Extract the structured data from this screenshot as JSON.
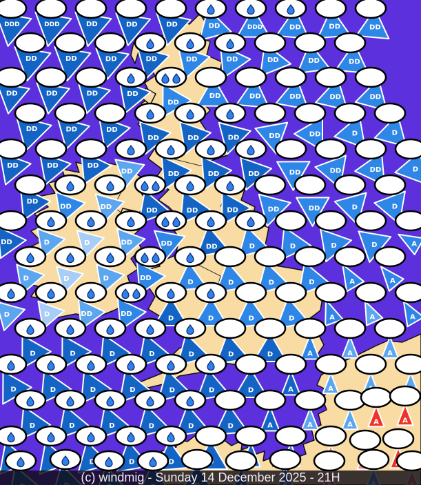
{
  "map": {
    "caption": "(c) windmig - Sunday 14 December 2025 - 21H",
    "colors": {
      "sea": "#5C30DC",
      "land": "#F8DCA4",
      "coast_outline": "#101010",
      "triangle_outline": "#FFFFFF",
      "cloud_fill": "#FFFFFF",
      "cloud_outline": "#000000",
      "drop_fill": "#2F80E8",
      "drop_outline": "#0A2A6E",
      "triangle_palette": [
        "#1464C6",
        "#2E86E6",
        "#5CA6F0",
        "#A8CEF6",
        "#EE3426",
        "#F4857C"
      ]
    },
    "symbol_format": "[x, y, apex_direction_deg(0=N), color_index, label, drop_count, scale]",
    "wind_labels_seen": [
      "D",
      "DD",
      "DDD",
      "A"
    ],
    "symbols": [
      [
        16,
        12,
        190,
        0,
        "DDD",
        0,
        1.1
      ],
      [
        74,
        12,
        190,
        0,
        "DDD",
        0,
        1.1
      ],
      [
        132,
        12,
        190,
        0,
        "DD",
        0,
        1.1
      ],
      [
        190,
        12,
        190,
        0,
        "DD",
        0,
        1.05
      ],
      [
        248,
        12,
        192,
        0,
        "DD",
        0,
        1.05
      ],
      [
        306,
        12,
        225,
        1,
        "DD",
        1,
        1
      ],
      [
        364,
        12,
        240,
        1,
        "DDD",
        1,
        1
      ],
      [
        422,
        12,
        245,
        1,
        "DD",
        1,
        1
      ],
      [
        480,
        12,
        235,
        1,
        "DD",
        0,
        1
      ],
      [
        538,
        12,
        245,
        1,
        "DD",
        0,
        1
      ],
      [
        44,
        62,
        190,
        0,
        "DD",
        0,
        1.1
      ],
      [
        102,
        62,
        190,
        0,
        "DD",
        0,
        1.1
      ],
      [
        160,
        62,
        190,
        0,
        "DD",
        0,
        1
      ],
      [
        218,
        62,
        195,
        0,
        "DD",
        1,
        1
      ],
      [
        276,
        62,
        198,
        1,
        "DD",
        1,
        1
      ],
      [
        334,
        62,
        205,
        1,
        "DD",
        1,
        1
      ],
      [
        392,
        62,
        218,
        1,
        "DD",
        0,
        1
      ],
      [
        450,
        62,
        232,
        1,
        "DD",
        0,
        1
      ],
      [
        508,
        62,
        245,
        1,
        "DD",
        0,
        1
      ],
      [
        16,
        112,
        190,
        0,
        "DD",
        0,
        1
      ],
      [
        74,
        112,
        190,
        0,
        "DD",
        0,
        1
      ],
      [
        132,
        112,
        195,
        0,
        "DD",
        0,
        1
      ],
      [
        190,
        112,
        200,
        0,
        "DD",
        1,
        1
      ],
      [
        248,
        112,
        330,
        1,
        "DD",
        2,
        1
      ],
      [
        306,
        112,
        240,
        1,
        "DD",
        0,
        1
      ],
      [
        364,
        112,
        245,
        1,
        "DD",
        0,
        1
      ],
      [
        422,
        112,
        250,
        1,
        "DD",
        0,
        1
      ],
      [
        480,
        112,
        253,
        1,
        "DD",
        0,
        1
      ],
      [
        538,
        112,
        255,
        1,
        "DD",
        0,
        1
      ],
      [
        44,
        164,
        195,
        0,
        "DD",
        0,
        1.1
      ],
      [
        102,
        164,
        195,
        0,
        "DD",
        0,
        1
      ],
      [
        160,
        164,
        200,
        0,
        "DD",
        0,
        1
      ],
      [
        218,
        164,
        320,
        0,
        "DD",
        1,
        1
      ],
      [
        276,
        164,
        320,
        0,
        "DD",
        1,
        1
      ],
      [
        334,
        164,
        315,
        0,
        "DD",
        1,
        1
      ],
      [
        392,
        164,
        290,
        1,
        "DD",
        0,
        1
      ],
      [
        450,
        164,
        270,
        1,
        "DD",
        0,
        1
      ],
      [
        508,
        164,
        260,
        1,
        "D",
        0,
        1
      ],
      [
        566,
        164,
        255,
        1,
        "D",
        0,
        1
      ],
      [
        16,
        216,
        200,
        0,
        "DD",
        0,
        1
      ],
      [
        74,
        216,
        200,
        0,
        "DD",
        0,
        1
      ],
      [
        132,
        216,
        205,
        0,
        "DD",
        0,
        1
      ],
      [
        190,
        216,
        70,
        2,
        "DD",
        1,
        0.9
      ],
      [
        248,
        216,
        325,
        0,
        "DD",
        1,
        1
      ],
      [
        306,
        216,
        325,
        0,
        "DD",
        1,
        1
      ],
      [
        364,
        216,
        320,
        0,
        "DD",
        1,
        1
      ],
      [
        422,
        216,
        300,
        1,
        "DD",
        0,
        1
      ],
      [
        480,
        216,
        280,
        1,
        "DD",
        0,
        1
      ],
      [
        538,
        216,
        265,
        1,
        "DD",
        0,
        1
      ],
      [
        596,
        216,
        260,
        1,
        "D",
        0,
        1
      ],
      [
        44,
        268,
        205,
        0,
        "DD",
        0,
        1
      ],
      [
        102,
        268,
        80,
        1,
        "DD",
        1,
        0.95
      ],
      [
        160,
        268,
        75,
        2,
        "DD",
        1,
        0.9
      ],
      [
        218,
        268,
        340,
        0,
        "DD",
        2,
        1
      ],
      [
        276,
        268,
        335,
        0,
        "DD",
        1,
        1
      ],
      [
        334,
        268,
        330,
        0,
        "DD",
        1,
        1
      ],
      [
        392,
        268,
        315,
        1,
        "DD",
        0,
        1
      ],
      [
        450,
        268,
        300,
        1,
        "DD",
        0,
        1
      ],
      [
        508,
        268,
        285,
        1,
        "D",
        0,
        1
      ],
      [
        566,
        268,
        280,
        1,
        "D",
        0,
        1
      ],
      [
        16,
        320,
        85,
        0,
        "DD",
        0,
        0.95
      ],
      [
        74,
        320,
        80,
        2,
        "D",
        1,
        0.9
      ],
      [
        132,
        320,
        75,
        3,
        "D",
        1,
        0.85
      ],
      [
        190,
        320,
        80,
        2,
        "DD",
        1,
        0.9
      ],
      [
        248,
        320,
        70,
        1,
        "DD",
        2,
        0.95
      ],
      [
        306,
        320,
        350,
        0,
        "DD",
        1,
        1
      ],
      [
        364,
        320,
        345,
        1,
        "D",
        1,
        0.95
      ],
      [
        422,
        320,
        335,
        1,
        "D",
        0,
        1
      ],
      [
        480,
        320,
        320,
        1,
        "D",
        0,
        1
      ],
      [
        538,
        320,
        310,
        1,
        "D",
        0,
        1
      ],
      [
        596,
        320,
        300,
        1,
        "A",
        0,
        0.85
      ],
      [
        44,
        372,
        80,
        2,
        "D",
        1,
        0.9
      ],
      [
        102,
        372,
        75,
        3,
        "D",
        1,
        0.85
      ],
      [
        160,
        372,
        80,
        2,
        "D",
        1,
        0.9
      ],
      [
        218,
        372,
        85,
        1,
        "DD",
        2,
        0.95
      ],
      [
        276,
        372,
        355,
        1,
        "D",
        1,
        0.95
      ],
      [
        334,
        372,
        350,
        1,
        "D",
        0,
        1
      ],
      [
        392,
        372,
        345,
        1,
        "D",
        0,
        1
      ],
      [
        450,
        372,
        340,
        1,
        "D",
        0,
        1
      ],
      [
        508,
        372,
        330,
        1,
        "A",
        0,
        0.9
      ],
      [
        566,
        372,
        320,
        1,
        "A",
        0,
        0.85
      ],
      [
        16,
        424,
        75,
        2,
        "D",
        1,
        0.9
      ],
      [
        74,
        424,
        80,
        3,
        "D",
        1,
        0.85
      ],
      [
        132,
        424,
        85,
        2,
        "DD",
        1,
        0.9
      ],
      [
        190,
        424,
        85,
        1,
        "DD",
        2,
        0.95
      ],
      [
        248,
        424,
        0,
        0,
        "D",
        1,
        1
      ],
      [
        306,
        424,
        0,
        1,
        "D",
        1,
        1
      ],
      [
        364,
        424,
        355,
        1,
        "D",
        0,
        1
      ],
      [
        422,
        424,
        350,
        1,
        "D",
        0,
        1
      ],
      [
        480,
        424,
        340,
        1,
        "A",
        0,
        0.85
      ],
      [
        538,
        424,
        335,
        2,
        "A",
        0,
        0.8
      ],
      [
        596,
        424,
        330,
        1,
        "A",
        0,
        0.85
      ],
      [
        44,
        476,
        330,
        0,
        "D",
        1,
        1
      ],
      [
        102,
        476,
        330,
        0,
        "D",
        1,
        1
      ],
      [
        160,
        476,
        335,
        0,
        "D",
        1,
        1
      ],
      [
        218,
        476,
        340,
        0,
        "D",
        1,
        1
      ],
      [
        276,
        476,
        345,
        0,
        "D",
        1,
        1
      ],
      [
        334,
        476,
        350,
        0,
        "D",
        0,
        1
      ],
      [
        392,
        476,
        0,
        0,
        "D",
        0,
        1
      ],
      [
        450,
        476,
        0,
        1,
        "A",
        0,
        0.85
      ],
      [
        508,
        476,
        0,
        2,
        "A",
        0,
        0.75
      ],
      [
        566,
        476,
        0,
        2,
        "A",
        0,
        0.75
      ],
      [
        16,
        528,
        330,
        0,
        "D",
        1,
        1
      ],
      [
        74,
        528,
        335,
        0,
        "D",
        1,
        1
      ],
      [
        132,
        528,
        335,
        0,
        "D",
        1,
        1
      ],
      [
        190,
        528,
        340,
        0,
        "D",
        1,
        1
      ],
      [
        248,
        528,
        345,
        0,
        "D",
        1,
        1
      ],
      [
        306,
        528,
        350,
        0,
        "D",
        1,
        1
      ],
      [
        364,
        528,
        0,
        0,
        "D",
        0,
        1
      ],
      [
        422,
        528,
        0,
        0,
        "A",
        0,
        0.85
      ],
      [
        480,
        528,
        0,
        2,
        "A",
        0,
        0.72
      ],
      [
        538,
        528,
        0,
        2,
        "A",
        0,
        0.72
      ],
      [
        596,
        528,
        0,
        2,
        "A",
        0,
        0.72
      ],
      [
        44,
        580,
        335,
        0,
        "D",
        1,
        1
      ],
      [
        102,
        580,
        340,
        0,
        "D",
        1,
        1
      ],
      [
        160,
        580,
        340,
        0,
        "D",
        1,
        1
      ],
      [
        218,
        580,
        345,
        0,
        "D",
        1,
        1
      ],
      [
        276,
        580,
        350,
        0,
        "D",
        1,
        1
      ],
      [
        334,
        580,
        355,
        0,
        "D",
        0,
        1
      ],
      [
        392,
        580,
        0,
        0,
        "A",
        0,
        0.85
      ],
      [
        450,
        580,
        0,
        2,
        "A",
        0,
        0.75
      ],
      [
        508,
        580,
        0,
        2,
        "A",
        0,
        0.72
      ],
      [
        546,
        576,
        0,
        4,
        "A",
        0,
        0.72
      ],
      [
        588,
        574,
        0,
        4,
        "A",
        0,
        0.72
      ],
      [
        16,
        632,
        340,
        0,
        "D",
        1,
        1
      ],
      [
        74,
        632,
        340,
        0,
        "D",
        1,
        1
      ],
      [
        132,
        632,
        345,
        0,
        "D",
        1,
        1
      ],
      [
        190,
        632,
        350,
        0,
        "D",
        1,
        1
      ],
      [
        248,
        632,
        355,
        0,
        "D",
        1,
        1
      ],
      [
        306,
        632,
        0,
        0,
        "D",
        0,
        1
      ],
      [
        364,
        632,
        0,
        0,
        "A",
        0,
        0.85
      ],
      [
        422,
        632,
        0,
        1,
        "A",
        0,
        0.8
      ],
      [
        480,
        632,
        0,
        5,
        "A",
        0,
        0.72
      ],
      [
        530,
        638,
        0,
        5,
        "A",
        0,
        0.72
      ],
      [
        578,
        636,
        0,
        4,
        "A",
        0,
        0.72
      ],
      [
        30,
        668,
        340,
        0,
        "D",
        1,
        1
      ],
      [
        95,
        666,
        345,
        0,
        "D",
        1,
        1
      ],
      [
        158,
        668,
        350,
        0,
        "D",
        1,
        1
      ],
      [
        222,
        668,
        355,
        0,
        "D",
        1,
        1
      ],
      [
        286,
        666,
        0,
        0,
        "D",
        0,
        1
      ],
      [
        350,
        668,
        0,
        0,
        "A",
        0,
        0.85
      ],
      [
        414,
        666,
        0,
        1,
        "A",
        0,
        0.8
      ],
      [
        478,
        668,
        0,
        5,
        "A",
        0,
        0.72
      ],
      [
        542,
        666,
        0,
        2,
        "A",
        0,
        0.72
      ],
      [
        598,
        668,
        0,
        5,
        "A",
        0,
        0.72
      ]
    ]
  }
}
